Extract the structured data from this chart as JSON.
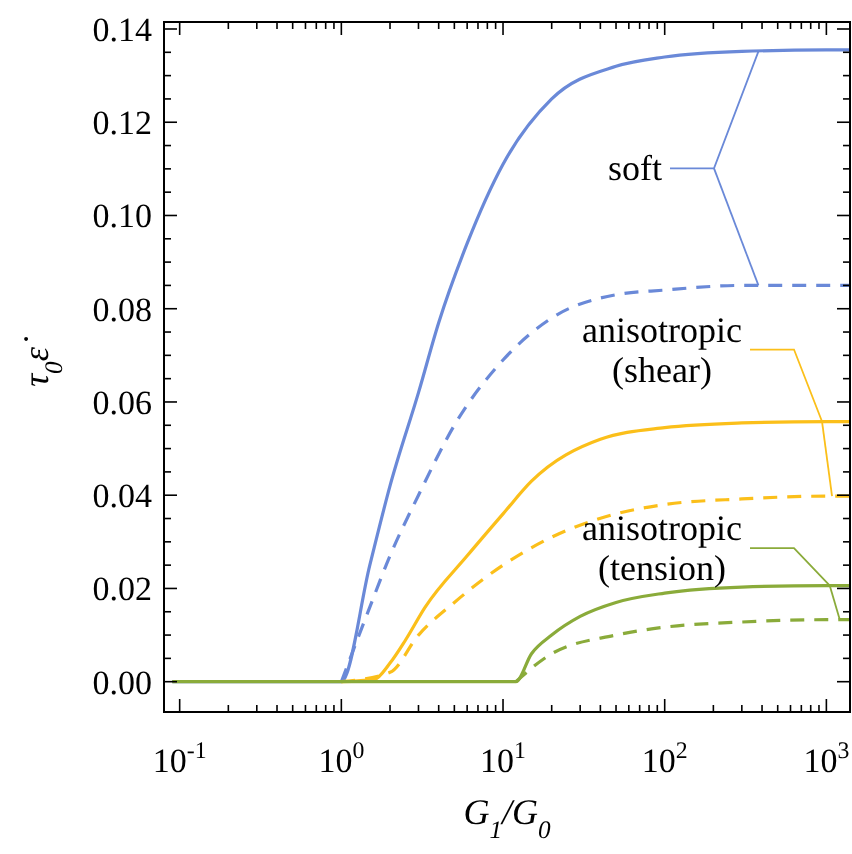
{
  "chart_data": {
    "type": "line",
    "xlabel": "G$_{1}$/G$_{0}$",
    "ylabel": "τ$_{0}$ε̇",
    "log": "x",
    "xlim": [
      0.08,
      1400
    ],
    "ylim": [
      -0.0065,
      0.1415
    ],
    "xticks": [
      {
        "value": 0.1,
        "label": "10$^{-1}$"
      },
      {
        "value": 0.2,
        "label": null
      },
      {
        "value": 0.3,
        "label": null
      },
      {
        "value": 0.4,
        "label": null
      },
      {
        "value": 0.5,
        "label": null
      },
      {
        "value": 0.6,
        "label": null
      },
      {
        "value": 0.7,
        "label": null
      },
      {
        "value": 0.8,
        "label": null
      },
      {
        "value": 0.9,
        "label": null
      },
      {
        "value": 1,
        "label": "10$^{0}$"
      },
      {
        "value": 2,
        "label": null
      },
      {
        "value": 3,
        "label": null
      },
      {
        "value": 4,
        "label": null
      },
      {
        "value": 5,
        "label": null
      },
      {
        "value": 6,
        "label": null
      },
      {
        "value": 7,
        "label": null
      },
      {
        "value": 8,
        "label": null
      },
      {
        "value": 9,
        "label": null
      },
      {
        "value": 10,
        "label": "10$^{1}$"
      },
      {
        "value": 20,
        "label": null
      },
      {
        "value": 30,
        "label": null
      },
      {
        "value": 40,
        "label": null
      },
      {
        "value": 50,
        "label": null
      },
      {
        "value": 60,
        "label": null
      },
      {
        "value": 70,
        "label": null
      },
      {
        "value": 80,
        "label": null
      },
      {
        "value": 90,
        "label": null
      },
      {
        "value": 100,
        "label": "10$^{2}$"
      },
      {
        "value": 200,
        "label": null
      },
      {
        "value": 300,
        "label": null
      },
      {
        "value": 400,
        "label": null
      },
      {
        "value": 500,
        "label": null
      },
      {
        "value": 600,
        "label": null
      },
      {
        "value": 700,
        "label": null
      },
      {
        "value": 800,
        "label": null
      },
      {
        "value": 900,
        "label": null
      },
      {
        "value": 1000,
        "label": "10$^{3}$"
      }
    ],
    "yticks": [
      {
        "value": 0,
        "label": "0.00"
      },
      {
        "value": 0.005,
        "label": null
      },
      {
        "value": 0.01,
        "label": null
      },
      {
        "value": 0.015,
        "label": null
      },
      {
        "value": 0.02,
        "label": "0.02"
      },
      {
        "value": 0.025,
        "label": null
      },
      {
        "value": 0.03,
        "label": null
      },
      {
        "value": 0.035,
        "label": null
      },
      {
        "value": 0.04,
        "label": "0.04"
      },
      {
        "value": 0.045,
        "label": null
      },
      {
        "value": 0.05,
        "label": null
      },
      {
        "value": 0.055,
        "label": null
      },
      {
        "value": 0.06,
        "label": "0.06"
      },
      {
        "value": 0.065,
        "label": null
      },
      {
        "value": 0.07,
        "label": null
      },
      {
        "value": 0.075,
        "label": null
      },
      {
        "value": 0.08,
        "label": "0.08"
      },
      {
        "value": 0.085,
        "label": null
      },
      {
        "value": 0.09,
        "label": null
      },
      {
        "value": 0.095,
        "label": null
      },
      {
        "value": 0.1,
        "label": "0.10"
      },
      {
        "value": 0.105,
        "label": null
      },
      {
        "value": 0.11,
        "label": null
      },
      {
        "value": 0.115,
        "label": null
      },
      {
        "value": 0.12,
        "label": "0.12"
      },
      {
        "value": 0.125,
        "label": null
      },
      {
        "value": 0.13,
        "label": null
      },
      {
        "value": 0.135,
        "label": null
      },
      {
        "value": 0.14,
        "label": "0.14"
      }
    ],
    "grid": false,
    "marker": "none",
    "series": [
      {
        "color": "#6a89d8",
        "line_style": "solid",
        "x": [
          0.09,
          1,
          1.5,
          2,
          3,
          4,
          6,
          10,
          20,
          50,
          100,
          300,
          1000,
          1400
        ],
        "values": [
          0,
          0,
          0.025,
          0.042,
          0.062,
          0.077,
          0.094,
          0.111,
          0.125,
          0.132,
          0.134,
          0.1352,
          0.1355,
          0.1355
        ]
      },
      {
        "color": "#6a89d8",
        "line_style": "dashed",
        "x": [
          1,
          1.5,
          2,
          3,
          5,
          10,
          20,
          50,
          100,
          300,
          1000,
          1400
        ],
        "values": [
          0,
          0.016,
          0.027,
          0.04,
          0.055,
          0.069,
          0.078,
          0.083,
          0.084,
          0.085,
          0.085,
          0.085
        ]
      },
      {
        "color": "#fbbf1a",
        "line_style": "solid",
        "x": [
          1,
          1.6,
          2,
          2.5,
          3.3,
          6,
          10,
          15,
          40,
          100,
          300,
          1000,
          1400
        ],
        "values": [
          0,
          0.0005,
          0.004,
          0.009,
          0.016,
          0.027,
          0.036,
          0.043,
          0.052,
          0.0545,
          0.0555,
          0.0558,
          0.0558
        ]
      },
      {
        "color": "#fbbf1a",
        "line_style": "dashed",
        "x": [
          1,
          2,
          3,
          5,
          10,
          20,
          50,
          100,
          300,
          1000,
          1400
        ],
        "values": [
          0,
          0.002,
          0.01,
          0.017,
          0.025,
          0.031,
          0.036,
          0.038,
          0.0392,
          0.0398,
          0.0398
        ]
      },
      {
        "color": "#8aab3a",
        "line_style": "solid",
        "x": [
          0.09,
          12,
          15,
          20,
          30,
          50,
          100,
          300,
          1000,
          1400
        ],
        "values": [
          0,
          0,
          0.006,
          0.01,
          0.014,
          0.017,
          0.019,
          0.0203,
          0.0206,
          0.0206
        ]
      },
      {
        "color": "#8aab3a",
        "line_style": "dashed",
        "x": [
          12,
          20,
          50,
          100,
          300,
          1000,
          1400
        ],
        "values": [
          0,
          0.006,
          0.01,
          0.0117,
          0.0128,
          0.0133,
          0.0133
        ]
      }
    ],
    "annotations": [
      {
        "text": "soft",
        "x": 380,
        "y": 0.1352
      },
      {
        "text": "anisotropic\n(shear)",
        "x": 940,
        "y": 0.0558
      },
      {
        "text": "anisotropic\n(tension)",
        "x": 1050,
        "y": 0.0206
      }
    ]
  }
}
